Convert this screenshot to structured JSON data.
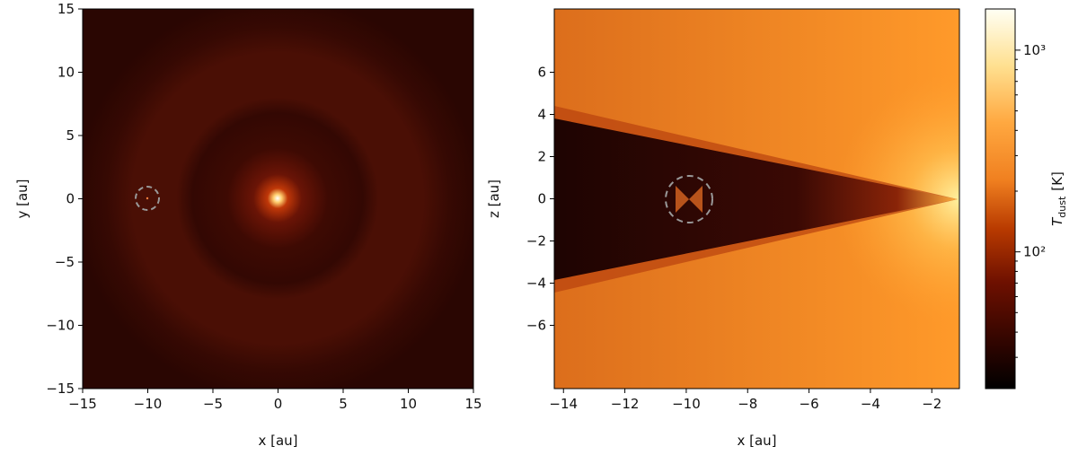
{
  "chart_data": [
    {
      "type": "heatmap",
      "xlabel": "x [au]",
      "ylabel": "y [au]",
      "xlim": [
        -15,
        15
      ],
      "ylim": [
        -15,
        15
      ],
      "xticks": [
        {
          "value": -15,
          "label": "−15"
        },
        {
          "value": -10,
          "label": "−10"
        },
        {
          "value": -5,
          "label": "−5"
        },
        0,
        5,
        10,
        15
      ],
      "yticks": [
        {
          "value": -15,
          "label": "−15"
        },
        {
          "value": -10,
          "label": "−10"
        },
        {
          "value": -5,
          "label": "−5"
        },
        0,
        5,
        10,
        15
      ]
    },
    {
      "type": "heatmap",
      "xlabel": "x [au]",
      "ylabel": "z [au]",
      "xlim": [
        -14.3,
        -1.1
      ],
      "ylim": [
        -9,
        9
      ],
      "xticks": [
        {
          "value": -14,
          "label": "−14"
        },
        {
          "value": -12,
          "label": "−12"
        },
        {
          "value": -10,
          "label": "−10"
        },
        {
          "value": -8,
          "label": "−8"
        },
        {
          "value": -6,
          "label": "−6"
        },
        {
          "value": -4,
          "label": "−4"
        },
        {
          "value": -2,
          "label": "−2"
        }
      ],
      "yticks": [
        {
          "value": -6,
          "label": "−6"
        },
        {
          "value": -4,
          "label": "−4"
        },
        {
          "value": -2,
          "label": "−2"
        },
        0,
        2,
        4,
        6
      ]
    },
    {
      "type": "colorbar",
      "scale": "log",
      "label": "T",
      "label_sub": "dust",
      "label_unit": "[K]",
      "ylim": [
        21,
        1600
      ],
      "yticks": [
        {
          "value": 100,
          "label": "10²"
        },
        {
          "value": 1000,
          "label": "10³"
        }
      ],
      "minor_ticks": [
        30,
        40,
        50,
        60,
        70,
        80,
        90,
        200,
        300,
        400,
        500,
        600,
        700,
        800,
        900
      ]
    }
  ]
}
